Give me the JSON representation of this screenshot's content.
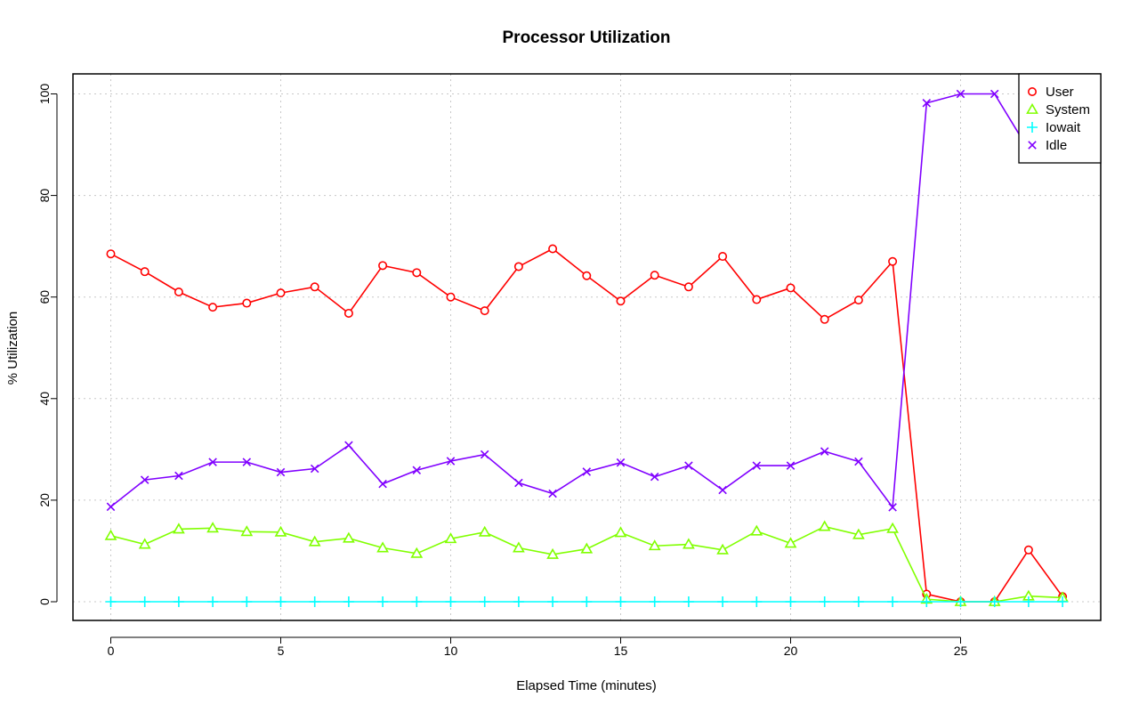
{
  "chart_data": {
    "type": "line",
    "title": "Processor Utilization",
    "xlabel": "Elapsed Time (minutes)",
    "ylabel": "% Utilization",
    "xlim": [
      0,
      28
    ],
    "ylim": [
      0,
      100
    ],
    "xticks": [
      0,
      5,
      10,
      15,
      20,
      25
    ],
    "yticks": [
      0,
      20,
      40,
      60,
      80,
      100
    ],
    "grid": true,
    "legend_position": "top-right",
    "x": [
      0,
      1,
      2,
      3,
      4,
      5,
      6,
      7,
      8,
      9,
      10,
      11,
      12,
      13,
      14,
      15,
      16,
      17,
      18,
      19,
      20,
      21,
      22,
      23,
      24,
      25,
      26,
      27,
      28
    ],
    "series": [
      {
        "name": "User",
        "color": "#ff0000",
        "marker": "circle",
        "values": [
          68.5,
          65,
          61,
          58,
          58.8,
          60.8,
          62,
          56.8,
          66.2,
          64.8,
          60,
          57.3,
          66,
          69.5,
          64.2,
          59.2,
          64.3,
          62,
          68,
          59.5,
          61.8,
          55.6,
          59.4,
          67,
          1.5,
          0,
          0,
          10.2,
          1
        ]
      },
      {
        "name": "System",
        "color": "#80ff00",
        "marker": "triangle",
        "values": [
          13,
          11.3,
          14.3,
          14.5,
          13.8,
          13.7,
          11.8,
          12.5,
          10.6,
          9.5,
          12.4,
          13.7,
          10.6,
          9.3,
          10.4,
          13.6,
          11,
          11.3,
          10.2,
          13.9,
          11.5,
          14.8,
          13.2,
          14.4,
          0.5,
          0,
          0,
          1.1,
          0.8
        ]
      },
      {
        "name": "Iowait",
        "color": "#00ffff",
        "marker": "plus",
        "values": [
          0,
          0,
          0,
          0,
          0,
          0,
          0,
          0,
          0,
          0,
          0,
          0,
          0,
          0,
          0,
          0,
          0,
          0,
          0,
          0,
          0,
          0,
          0,
          0,
          0,
          0,
          0,
          0,
          0
        ]
      },
      {
        "name": "Idle",
        "color": "#8000ff",
        "marker": "x",
        "values": [
          18.7,
          24,
          24.8,
          27.5,
          27.5,
          25.5,
          26.2,
          30.8,
          23.2,
          25.9,
          27.7,
          29,
          23.4,
          21.3,
          25.6,
          27.4,
          24.6,
          26.8,
          22,
          26.8,
          26.8,
          29.6,
          27.6,
          18.6,
          98.2,
          100,
          100,
          89,
          98.3
        ]
      }
    ]
  }
}
